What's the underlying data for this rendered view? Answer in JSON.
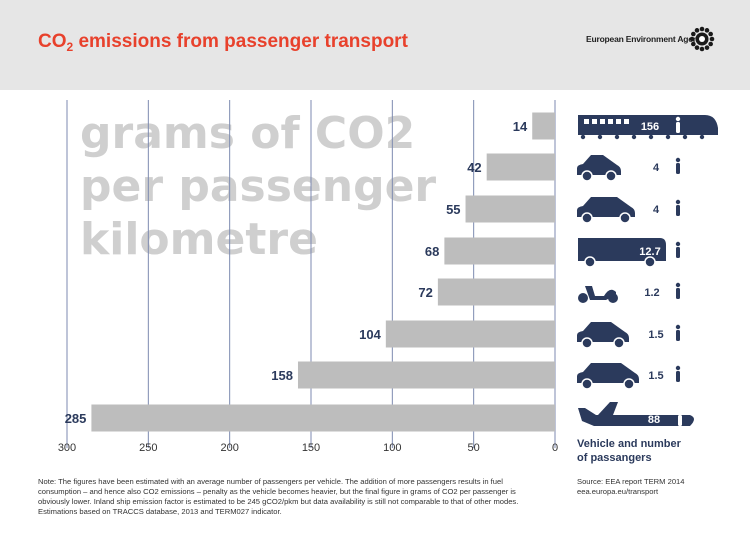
{
  "header": {
    "title_prefix": "CO",
    "title_sub": "2",
    "title_suffix": " emissions from passenger transport",
    "agency": "European Environment Agency"
  },
  "colors": {
    "header_bg": "#e6e6e6",
    "title": "#e8412c",
    "bar": "#bdbdbd",
    "grid": "#7d8ab0",
    "navy": "#2b3a5c",
    "watermark": "#cfcfcf"
  },
  "chart_data": {
    "type": "bar",
    "orientation": "horizontal",
    "x_axis_reversed": true,
    "xlim": [
      300,
      0
    ],
    "xticks": [
      300,
      250,
      200,
      150,
      100,
      50,
      0
    ],
    "grid": true,
    "watermark_lines": [
      "grams of CO2",
      "per passenger",
      "kilometre"
    ],
    "categories": [
      "train",
      "car",
      "car",
      "bus",
      "motorcycle",
      "car",
      "car",
      "plane"
    ],
    "values": [
      14,
      42,
      55,
      68,
      72,
      104,
      158,
      285
    ],
    "passengers": [
      "156",
      "4",
      "4",
      "12.7",
      "1.2",
      "1.5",
      "1.5",
      "88"
    ],
    "legend_line1": "Vehicle and number",
    "legend_line2": "of passangers"
  },
  "footer": {
    "note": "Note: The figures have been estimated with an average number of passengers per vehicle. The addition of more passengers results in fuel consumption – and hence also CO2 emissions – penalty as the vehicle becomes heavier, but the final figure in grams of CO2 per passenger is obviously lower. Inland ship emission factor is estimated to be 245 gCO2/pkm but data availability is still not comparable to that of other modes. Estimations based on TRACCS database, 2013 and TERM027 indicator.",
    "source_line1": "Source: EEA report TERM 2014",
    "source_line2": "eea.europa.eu/transport"
  }
}
